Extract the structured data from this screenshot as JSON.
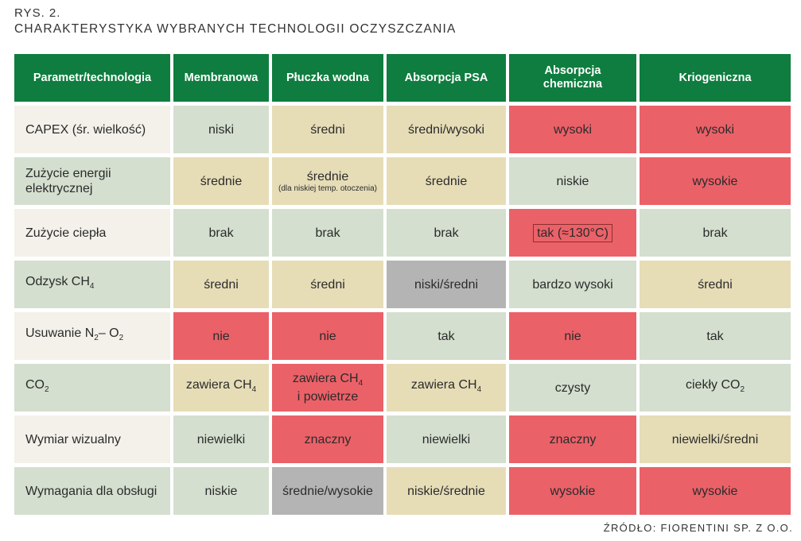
{
  "figure": {
    "label": "RYS. 2.",
    "title": "CHARAKTERYSTYKA WYBRANYCH TECHNOLOGII OCZYSZCZANIA",
    "source": "ŹRÓDŁO: FIORENTINI SP. Z O.O."
  },
  "headers": [
    "Parametr/technologia",
    "Membranowa",
    "Płuczka wodna",
    "Absorpcja PSA",
    "Absorpcja chemiczna",
    "Kriogeniczna"
  ],
  "rows": [
    {
      "param": "CAPEX (śr. wielkość)",
      "cells": [
        {
          "text": "niski",
          "color": "green"
        },
        {
          "text": "średni",
          "color": "beige"
        },
        {
          "text": "średni/wysoki",
          "color": "beige"
        },
        {
          "text": "wysoki",
          "color": "red"
        },
        {
          "text": "wysoki",
          "color": "red"
        }
      ]
    },
    {
      "param": "Zużycie energii elektrycznej",
      "cells": [
        {
          "text": "średnie",
          "color": "beige"
        },
        {
          "text": "średnie",
          "note": "(dla niskiej temp. otoczenia)",
          "color": "beige"
        },
        {
          "text": "średnie",
          "color": "beige"
        },
        {
          "text": "niskie",
          "color": "green"
        },
        {
          "text": "wysokie",
          "color": "red"
        }
      ]
    },
    {
      "param": "Zużycie ciepła",
      "cells": [
        {
          "text": "brak",
          "color": "green"
        },
        {
          "text": "brak",
          "color": "green"
        },
        {
          "text": "brak",
          "color": "green"
        },
        {
          "text": "tak (≈130°C)",
          "color": "red"
        },
        {
          "text": "brak",
          "color": "green"
        }
      ]
    },
    {
      "param_base": "Odzysk CH",
      "param_sub": "4",
      "cells": [
        {
          "text": "średni",
          "color": "beige"
        },
        {
          "text": "średni",
          "color": "beige"
        },
        {
          "text": "niski/średni",
          "color": "gray"
        },
        {
          "text": "bardzo wysoki",
          "color": "green"
        },
        {
          "text": "średni",
          "color": "beige"
        }
      ]
    },
    {
      "param_parts": [
        "Usuwanie N",
        "2",
        "– O",
        "2"
      ],
      "cells": [
        {
          "text": "nie",
          "color": "red"
        },
        {
          "text": "nie",
          "color": "red"
        },
        {
          "text": "tak",
          "color": "green"
        },
        {
          "text": "nie",
          "color": "red"
        },
        {
          "text": "tak",
          "color": "green"
        }
      ]
    },
    {
      "param_base": "CO",
      "param_sub": "2",
      "cells": [
        {
          "text": "zawiera CH",
          "sub": "4",
          "color": "beige"
        },
        {
          "line1": "zawiera CH",
          "line1_sub": "4",
          "line2": "i powietrze",
          "color": "red"
        },
        {
          "text": "zawiera CH",
          "sub": "4",
          "color": "beige"
        },
        {
          "text": "czysty",
          "color": "green"
        },
        {
          "text": "ciekły CO",
          "sub": "2",
          "color": "green"
        }
      ]
    },
    {
      "param": "Wymiar wizualny",
      "cells": [
        {
          "text": "niewielki",
          "color": "green"
        },
        {
          "text": "znaczny",
          "color": "red"
        },
        {
          "text": "niewielki",
          "color": "green"
        },
        {
          "text": "znaczny",
          "color": "red"
        },
        {
          "text": "niewielki/średni",
          "color": "beige"
        }
      ]
    },
    {
      "param": "Wymagania dla obsługi",
      "cells": [
        {
          "text": "niskie",
          "color": "green"
        },
        {
          "text": "średnie/wysokie",
          "color": "gray"
        },
        {
          "text": "niskie/średnie",
          "color": "beige"
        },
        {
          "text": "wysokie",
          "color": "red"
        },
        {
          "text": "wysokie",
          "color": "red"
        }
      ]
    }
  ],
  "colors": {
    "header": "#0f7d3f",
    "green": "#d4dfcf",
    "beige": "#e6ddb7",
    "red": "#eb6168",
    "gray": "#b4b4b4",
    "param_light": "#f3f1ea",
    "param_dark": "#d4dfcf"
  }
}
